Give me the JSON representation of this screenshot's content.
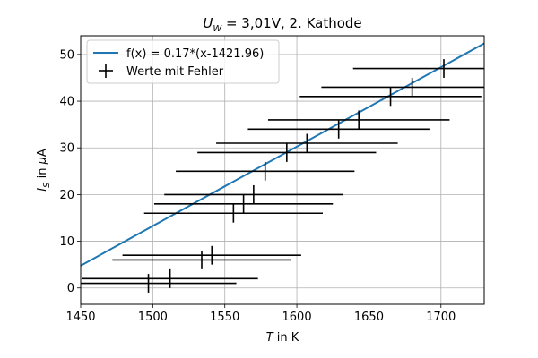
{
  "chart_data": {
    "type": "scatter",
    "title": "U_W = 3,01V, 2. Kathode",
    "title_parts": {
      "main": "U",
      "sub": "W",
      "rest": " = 3,01V, 2. Kathode"
    },
    "xlabel": "T in K",
    "xlabel_parts": {
      "var": "T",
      "rest": " in K"
    },
    "ylabel": "I_S in μA",
    "ylabel_parts": {
      "var": "I",
      "sub": "S",
      "rest": " in ",
      "unit_greek": "μ",
      "unit": "A"
    },
    "xlim": [
      1450,
      1730
    ],
    "ylim": [
      -3.5,
      54
    ],
    "xticks": [
      1450,
      1500,
      1550,
      1600,
      1650,
      1700
    ],
    "yticks": [
      0,
      10,
      20,
      30,
      40,
      50
    ],
    "grid": true,
    "legend_position": "top-left",
    "fit": {
      "name": "f(x) = 0.17*(x-1421.96)",
      "slope": 0.17,
      "x0": 1421.96,
      "color": "#1f77b4"
    },
    "series": [
      {
        "name": "Werte mit Fehler",
        "color": "#000000",
        "x": [
          1497,
          1512,
          1534,
          1541,
          1556,
          1563,
          1570,
          1578,
          1593,
          1607,
          1629,
          1643,
          1665,
          1680,
          1702
        ],
        "y": [
          1,
          2,
          6,
          7,
          16,
          18,
          20,
          25,
          29,
          31,
          34,
          36,
          41,
          43,
          47
        ],
        "xerr": [
          61,
          61,
          62,
          62,
          62,
          62,
          62,
          62,
          62,
          63,
          63,
          63,
          63,
          63,
          63
        ],
        "yerr": [
          2,
          2,
          2,
          2,
          2,
          2,
          2,
          2,
          2,
          2,
          2,
          2,
          2,
          2,
          2
        ]
      }
    ]
  }
}
